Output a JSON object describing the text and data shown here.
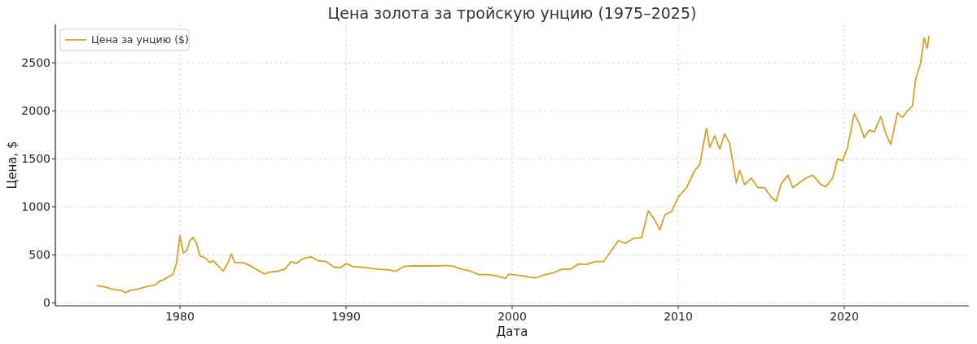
{
  "chart_data": {
    "type": "line",
    "title": "Цена золота за тройскую унцию (1975–2025)",
    "xlabel": "Дата",
    "ylabel": "Цена, $",
    "x": [
      1975.0,
      1975.5,
      1976.0,
      1976.5,
      1976.7,
      1977.0,
      1977.5,
      1978.0,
      1978.5,
      1978.8,
      1979.0,
      1979.3,
      1979.6,
      1979.8,
      1980.0,
      1980.2,
      1980.4,
      1980.6,
      1980.8,
      1981.0,
      1981.2,
      1981.5,
      1981.8,
      1982.0,
      1982.4,
      1982.6,
      1982.9,
      1983.1,
      1983.3,
      1983.8,
      1984.2,
      1984.6,
      1985.1,
      1985.4,
      1985.9,
      1986.3,
      1986.7,
      1987.0,
      1987.4,
      1987.9,
      1988.3,
      1988.8,
      1989.3,
      1989.7,
      1990.0,
      1990.4,
      1991.0,
      1991.5,
      1992.0,
      1992.5,
      1993.0,
      1993.5,
      1994.0,
      1994.5,
      1995.0,
      1995.6,
      1996.0,
      1996.5,
      1997.0,
      1997.5,
      1998.0,
      1998.5,
      1999.0,
      1999.6,
      1999.8,
      2000.5,
      2001.0,
      2001.4,
      2002.0,
      2002.5,
      2003.0,
      2003.5,
      2004.0,
      2004.5,
      2005.0,
      2005.5,
      2006.0,
      2006.4,
      2006.8,
      2007.3,
      2007.8,
      2008.2,
      2008.6,
      2008.9,
      2009.2,
      2009.6,
      2010.0,
      2010.5,
      2011.0,
      2011.3,
      2011.7,
      2011.9,
      2012.2,
      2012.5,
      2012.8,
      2013.1,
      2013.5,
      2013.7,
      2014.0,
      2014.4,
      2014.8,
      2015.2,
      2015.6,
      2015.9,
      2016.2,
      2016.6,
      2016.9,
      2017.3,
      2017.7,
      2018.1,
      2018.6,
      2018.9,
      2019.3,
      2019.6,
      2019.9,
      2020.2,
      2020.6,
      2020.9,
      2021.2,
      2021.5,
      2021.8,
      2022.2,
      2022.5,
      2022.8,
      2023.2,
      2023.5,
      2023.8,
      2024.1,
      2024.3,
      2024.6,
      2024.8,
      2025.0,
      2025.1
    ],
    "series": [
      {
        "name": "Цена за унцию ($)",
        "color": "#d4a12a",
        "values": [
          180,
          165,
          140,
          128,
          105,
          130,
          145,
          170,
          185,
          230,
          240,
          270,
          300,
          420,
          700,
          520,
          540,
          650,
          680,
          620,
          490,
          470,
          420,
          440,
          370,
          330,
          420,
          510,
          420,
          420,
          390,
          350,
          300,
          320,
          330,
          350,
          430,
          410,
          460,
          480,
          440,
          430,
          370,
          370,
          410,
          380,
          370,
          360,
          350,
          345,
          330,
          380,
          385,
          385,
          385,
          385,
          390,
          380,
          350,
          330,
          295,
          295,
          285,
          255,
          300,
          285,
          270,
          260,
          295,
          315,
          350,
          350,
          405,
          400,
          430,
          430,
          550,
          650,
          620,
          670,
          680,
          960,
          860,
          760,
          920,
          950,
          1100,
          1200,
          1380,
          1440,
          1820,
          1620,
          1740,
          1600,
          1760,
          1660,
          1250,
          1380,
          1230,
          1300,
          1200,
          1200,
          1100,
          1060,
          1240,
          1330,
          1200,
          1250,
          1300,
          1330,
          1230,
          1210,
          1300,
          1500,
          1480,
          1620,
          1970,
          1870,
          1720,
          1800,
          1780,
          1940,
          1760,
          1650,
          1980,
          1930,
          2000,
          2050,
          2330,
          2500,
          2760,
          2650,
          2780
        ]
      }
    ],
    "xlim": [
      1972.5,
      2027.5
    ],
    "xticks": [
      1980,
      1990,
      2000,
      2010,
      2020
    ],
    "ylim": [
      -30,
      2900
    ],
    "yticks": [
      0,
      500,
      1000,
      1500,
      2000,
      2500
    ],
    "grid": true,
    "legend": "top left",
    "line_style": "solid",
    "marker": "none"
  }
}
